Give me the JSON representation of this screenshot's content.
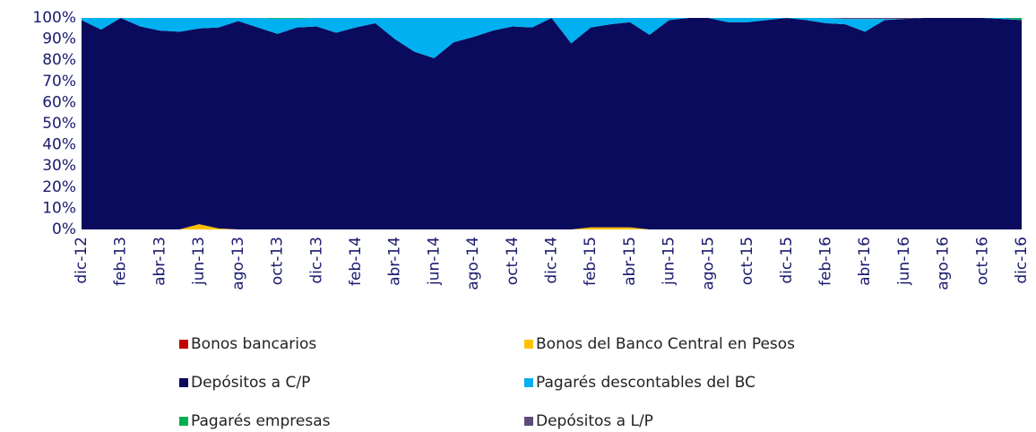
{
  "chart_data": {
    "type": "stacked_area_percent",
    "categories": [
      "dic-12",
      null,
      "feb-13",
      null,
      "abr-13",
      null,
      "jun-13",
      null,
      "ago-13",
      null,
      "oct-13",
      null,
      "dic-13",
      null,
      "feb-14",
      null,
      "abr-14",
      null,
      "jun-14",
      null,
      "ago-14",
      null,
      "oct-14",
      null,
      "dic-14",
      null,
      "feb-15",
      null,
      "abr-15",
      null,
      "jun-15",
      null,
      "ago-15",
      null,
      "oct-15",
      null,
      "dic-15",
      null,
      "feb-16",
      null,
      "abr-16",
      null,
      "jun-16",
      null,
      "ago-16",
      null,
      "oct-16",
      null,
      "dic-16"
    ],
    "series": [
      {
        "name": "Bonos bancarios",
        "color": "#c00000",
        "values": [
          0,
          0,
          0,
          0,
          0,
          0,
          0,
          0,
          0,
          0,
          0,
          0,
          0,
          0,
          0,
          0,
          0,
          0,
          0,
          0,
          0,
          0,
          0,
          0,
          0,
          0,
          0,
          0,
          0,
          0,
          0,
          0,
          0,
          0,
          0,
          0,
          0,
          0,
          0,
          0,
          0,
          0,
          0,
          0,
          0,
          0,
          0,
          0,
          0
        ]
      },
      {
        "name": "Bonos del Banco Central en Pesos",
        "color": "#ffc000",
        "values": [
          0,
          0,
          0,
          0,
          0,
          0,
          2.5,
          0.5,
          0,
          0,
          0,
          0,
          0,
          0,
          0,
          0,
          0,
          0,
          0,
          0,
          0,
          0,
          0,
          0,
          0,
          0,
          1,
          1,
          1,
          0,
          0,
          0,
          0,
          0,
          0,
          0,
          0,
          0,
          0,
          0,
          0,
          0,
          0,
          0,
          0,
          0,
          0,
          0,
          0
        ]
      },
      {
        "name": "Depósitos a C/P",
        "color": "#0b0b5e",
        "values": [
          99,
          94.5,
          100,
          96,
          94,
          93.5,
          92.5,
          95,
          98.5,
          95.5,
          92.5,
          95.5,
          96,
          93,
          95.5,
          97.5,
          90,
          84,
          81,
          88.5,
          91,
          94,
          96,
          95.5,
          100,
          88,
          94.5,
          96,
          97,
          92,
          99,
          100,
          100,
          98,
          98,
          99,
          100,
          99,
          97.5,
          97,
          93.5,
          99,
          99.5,
          100,
          100,
          100,
          100,
          99.5,
          99
        ]
      },
      {
        "name": "Pagarés descontables del BC",
        "color": "#00b0f0",
        "values": [
          1,
          5.5,
          0,
          4,
          6,
          6.5,
          5,
          4.5,
          1.5,
          4.5,
          7.2,
          4.2,
          4,
          7,
          4.5,
          2.5,
          10,
          16,
          19,
          11.5,
          9,
          6,
          4,
          4.5,
          0,
          12,
          4.5,
          3,
          2,
          8,
          1,
          0,
          0,
          2,
          2,
          1,
          0,
          1,
          2.5,
          2.5,
          6,
          0.5,
          0,
          0,
          0,
          0,
          0,
          0.5,
          0
        ]
      },
      {
        "name": "Pagarés empresas",
        "color": "#00b050",
        "values": [
          0,
          0,
          0,
          0,
          0,
          0,
          0,
          0,
          0,
          0,
          0.3,
          0.3,
          0,
          0,
          0,
          0,
          0,
          0,
          0,
          0,
          0,
          0,
          0,
          0,
          0,
          0,
          0,
          0,
          0,
          0,
          0,
          0,
          0,
          0,
          0,
          0,
          0,
          0,
          0,
          0,
          0,
          0,
          0,
          0,
          0,
          0,
          0,
          0,
          1
        ]
      },
      {
        "name": "Depósitos a L/P",
        "color": "#604a7b",
        "values": [
          0,
          0,
          0,
          0,
          0,
          0,
          0,
          0,
          0,
          0,
          0,
          0,
          0,
          0,
          0,
          0,
          0,
          0,
          0,
          0,
          0,
          0,
          0,
          0,
          0,
          0,
          0,
          0,
          0,
          0,
          0,
          0,
          0,
          0,
          0,
          0,
          0,
          0,
          0,
          0.5,
          0.5,
          0.5,
          0.5,
          0,
          0,
          0,
          0,
          0,
          0
        ]
      }
    ],
    "ylim": [
      0,
      100
    ],
    "yticks": [
      {
        "value": 0,
        "label": "0%"
      },
      {
        "value": 10,
        "label": "10%"
      },
      {
        "value": 20,
        "label": "20%"
      },
      {
        "value": 30,
        "label": "30%"
      },
      {
        "value": 40,
        "label": "40%"
      },
      {
        "value": 50,
        "label": "50%"
      },
      {
        "value": 60,
        "label": "60%"
      },
      {
        "value": 70,
        "label": "70%"
      },
      {
        "value": 80,
        "label": "80%"
      },
      {
        "value": 90,
        "label": "90%"
      },
      {
        "value": 100,
        "label": "100%"
      }
    ],
    "grid": false
  }
}
